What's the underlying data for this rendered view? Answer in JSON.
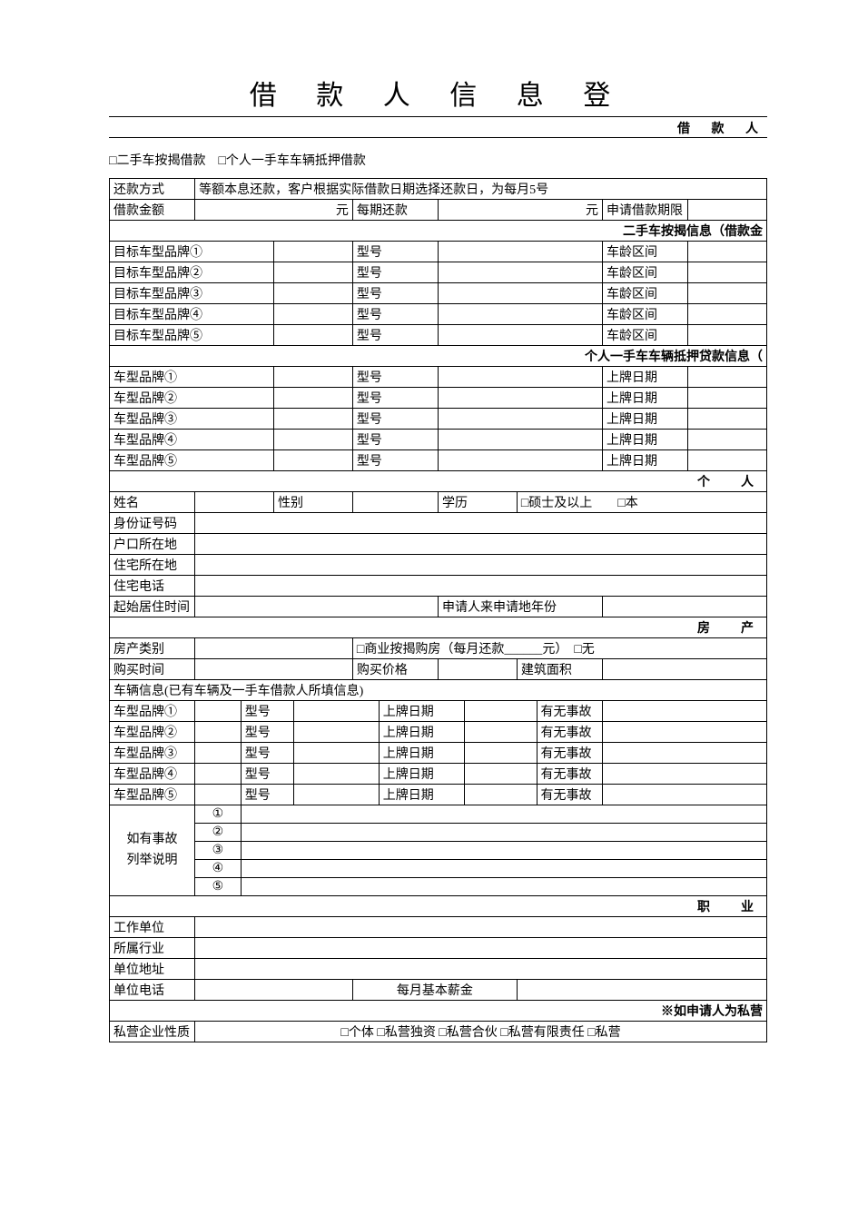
{
  "title": "借 款 人 信 息 登",
  "subtitle": "借 款 人",
  "loan_types": {
    "opt1": "□二手车按揭借款",
    "opt2": "□个人一手车车辆抵押借款"
  },
  "repay": {
    "method_label": "还款方式",
    "method_value": "等额本息还款，客户根据实际借款日期选择还款日，为每月5号",
    "amount_label": "借款金额",
    "amount_unit": "元",
    "per_period_label": "每期还款",
    "per_period_unit": "元",
    "term_label": "申请借款期限"
  },
  "section_used": "二手车按揭信息（借款金",
  "used_rows": [
    {
      "brand": "目标车型品牌①",
      "model": "型号",
      "age": "车龄区间"
    },
    {
      "brand": "目标车型品牌②",
      "model": "型号",
      "age": "车龄区间"
    },
    {
      "brand": "目标车型品牌③",
      "model": "型号",
      "age": "车龄区间"
    },
    {
      "brand": "目标车型品牌④",
      "model": "型号",
      "age": "车龄区间"
    },
    {
      "brand": "目标车型品牌⑤",
      "model": "型号",
      "age": "车龄区间"
    }
  ],
  "section_first": "个人一手车车辆抵押贷款信息（",
  "first_rows": [
    {
      "brand": "车型品牌①",
      "model": "型号",
      "date": "上牌日期"
    },
    {
      "brand": "车型品牌②",
      "model": "型号",
      "date": "上牌日期"
    },
    {
      "brand": "车型品牌③",
      "model": "型号",
      "date": "上牌日期"
    },
    {
      "brand": "车型品牌④",
      "model": "型号",
      "date": "上牌日期"
    },
    {
      "brand": "车型品牌⑤",
      "model": "型号",
      "date": "上牌日期"
    }
  ],
  "section_personal": "个　人",
  "personal": {
    "name": "姓名",
    "gender": "性别",
    "education": "学历",
    "edu_opts": "□硕士及以上　　□本",
    "id_no": "身份证号码",
    "hukou": "户口所在地",
    "residence": "住宅所在地",
    "home_phone": "住宅电话",
    "start_live": "起始居住时间",
    "years_here": "申请人来申请地年份"
  },
  "section_property": "房　产",
  "property": {
    "type_label": "房产类别",
    "type_opts": "□商业按揭购房（每月还款______元）　□无",
    "buy_time": "购买时间",
    "buy_price": "购买价格",
    "area": "建筑面积"
  },
  "vehicle_info_header": "车辆信息(已有车辆及一手车借款人所填信息)",
  "owned_rows": [
    {
      "brand": "车型品牌①",
      "model": "型号",
      "date": "上牌日期",
      "acc": "有无事故"
    },
    {
      "brand": "车型品牌②",
      "model": "型号",
      "date": "上牌日期",
      "acc": "有无事故"
    },
    {
      "brand": "车型品牌③",
      "model": "型号",
      "date": "上牌日期",
      "acc": "有无事故"
    },
    {
      "brand": "车型品牌④",
      "model": "型号",
      "date": "上牌日期",
      "acc": "有无事故"
    },
    {
      "brand": "车型品牌⑤",
      "model": "型号",
      "date": "上牌日期",
      "acc": "有无事故"
    }
  ],
  "accident": {
    "label": "如有事故\n列举说明",
    "nums": [
      "①",
      "②",
      "③",
      "④",
      "⑤"
    ]
  },
  "section_job": "职　业",
  "job": {
    "company": "工作单位",
    "industry": "所属行业",
    "address": "单位地址",
    "phone": "单位电话",
    "salary": "每月基本薪金"
  },
  "section_private": "※如申请人为私营",
  "private": {
    "label": "私营企业性质",
    "opts": "□个体  □私营独资  □私营合伙  □私营有限责任  □私营"
  },
  "layout": {
    "col_widths_8": [
      "13%",
      "12%",
      "12%",
      "13%",
      "12%",
      "13%",
      "13%",
      "12%"
    ]
  }
}
